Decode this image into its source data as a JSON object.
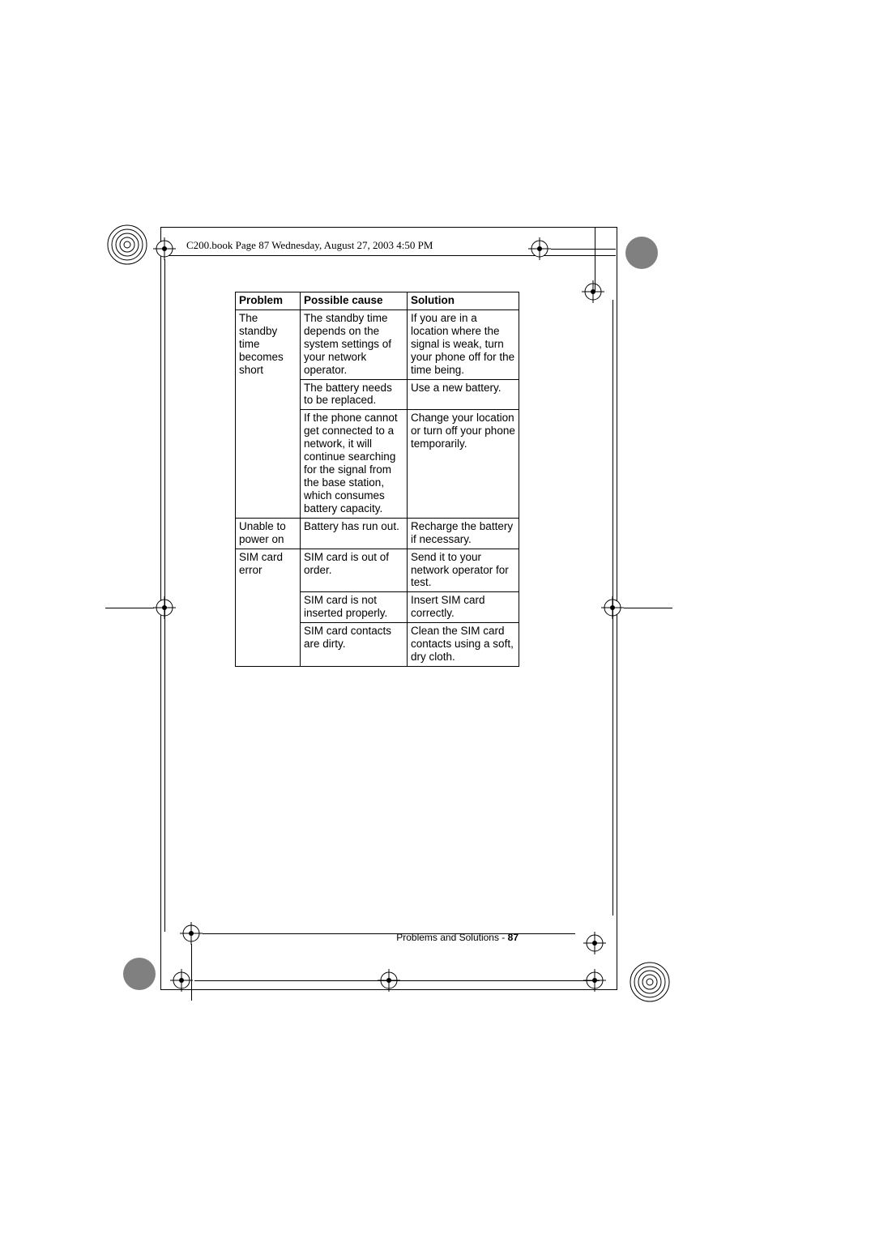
{
  "header_stamp": "C200.book  Page 87  Wednesday, August 27, 2003  4:50 PM",
  "table": {
    "headers": [
      "Problem",
      "Possible cause",
      "Solution"
    ],
    "groups": [
      {
        "problem": "The standby time becomes short",
        "rows": [
          {
            "cause": "The standby time depends on the system settings of your network operator.",
            "solution": "If you are in a location where the signal is weak, turn your phone off for the time being."
          },
          {
            "cause": "The battery needs to be replaced.",
            "solution": "Use a new battery."
          },
          {
            "cause": "If the phone cannot get connected to a network, it will continue searching for the signal from the base station, which consumes battery capacity.",
            "solution": "Change your location or turn off your phone temporarily."
          }
        ]
      },
      {
        "problem": "Unable to power on",
        "rows": [
          {
            "cause": "Battery has run out.",
            "solution": "Recharge the battery if necessary."
          }
        ]
      },
      {
        "problem": "SIM card error",
        "rows": [
          {
            "cause": "SIM card is out of order.",
            "solution": "Send it to your network operator for test."
          },
          {
            "cause": "SIM card is not inserted properly.",
            "solution": "Insert SIM card correctly."
          },
          {
            "cause": "SIM card contacts are dirty.",
            "solution": "Clean the SIM card contacts using a soft, dry cloth."
          }
        ]
      }
    ]
  },
  "footer": {
    "section": "Problems and Solutions - ",
    "page": "87"
  },
  "marks": {
    "circle_r_outer": 22,
    "circle_r_inner": [
      18,
      14,
      10,
      6,
      2
    ]
  }
}
